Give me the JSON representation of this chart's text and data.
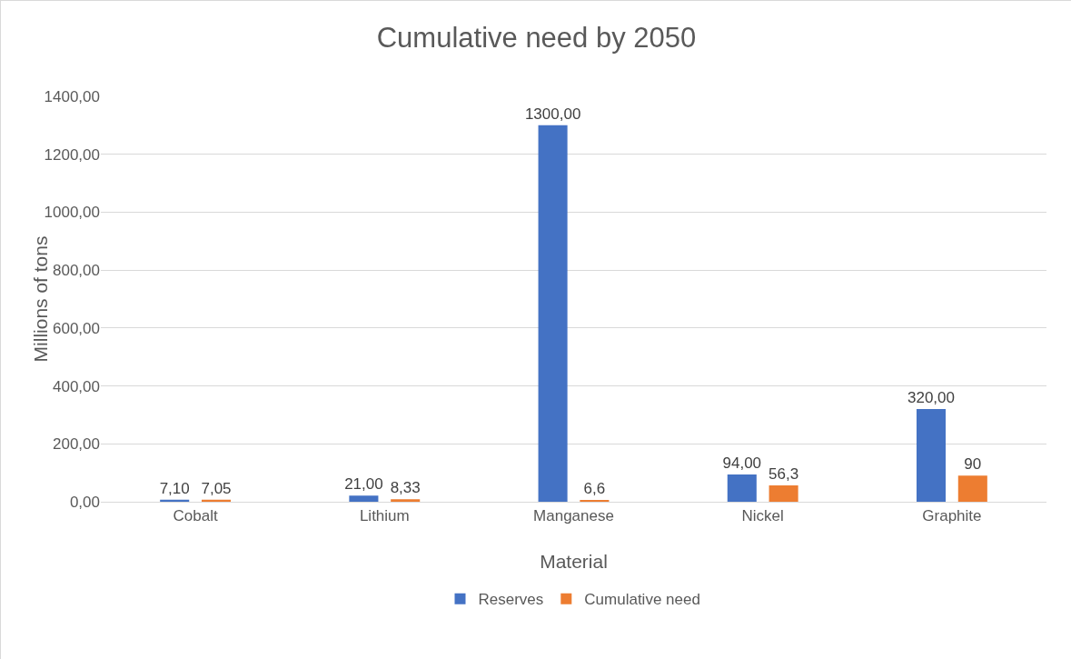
{
  "chart_data": {
    "type": "bar",
    "title": "Cumulative need by 2050",
    "xlabel": "Material",
    "ylabel": "Millions of tons",
    "categories": [
      "Cobalt",
      "Lithium",
      "Manganese",
      "Nickel",
      "Graphite"
    ],
    "series": [
      {
        "name": "Reserves",
        "color": "#4472c4",
        "values": [
          7.1,
          21,
          1300,
          94,
          320
        ],
        "value_labels": [
          "7,10",
          "21,00",
          "1300,00",
          "94,00",
          "320,00"
        ]
      },
      {
        "name": "Cumulative need",
        "color": "#ed7d31",
        "values": [
          7.05,
          8.33,
          6.6,
          56.3,
          90
        ],
        "value_labels": [
          "7,05",
          "8,33",
          "6,6",
          "56,3",
          "90"
        ]
      }
    ],
    "ylim": [
      0,
      1400
    ],
    "yticks": [
      {
        "value": 0,
        "label": "0,00"
      },
      {
        "value": 200,
        "label": "200,00"
      },
      {
        "value": 400,
        "label": "400,00"
      },
      {
        "value": 600,
        "label": "600,00"
      },
      {
        "value": 800,
        "label": "800,00"
      },
      {
        "value": 1000,
        "label": "1000,00"
      },
      {
        "value": 1200,
        "label": "1200,00"
      },
      {
        "value": 1400,
        "label": "1400,00"
      }
    ],
    "grid": "y",
    "legend": "bottom"
  }
}
